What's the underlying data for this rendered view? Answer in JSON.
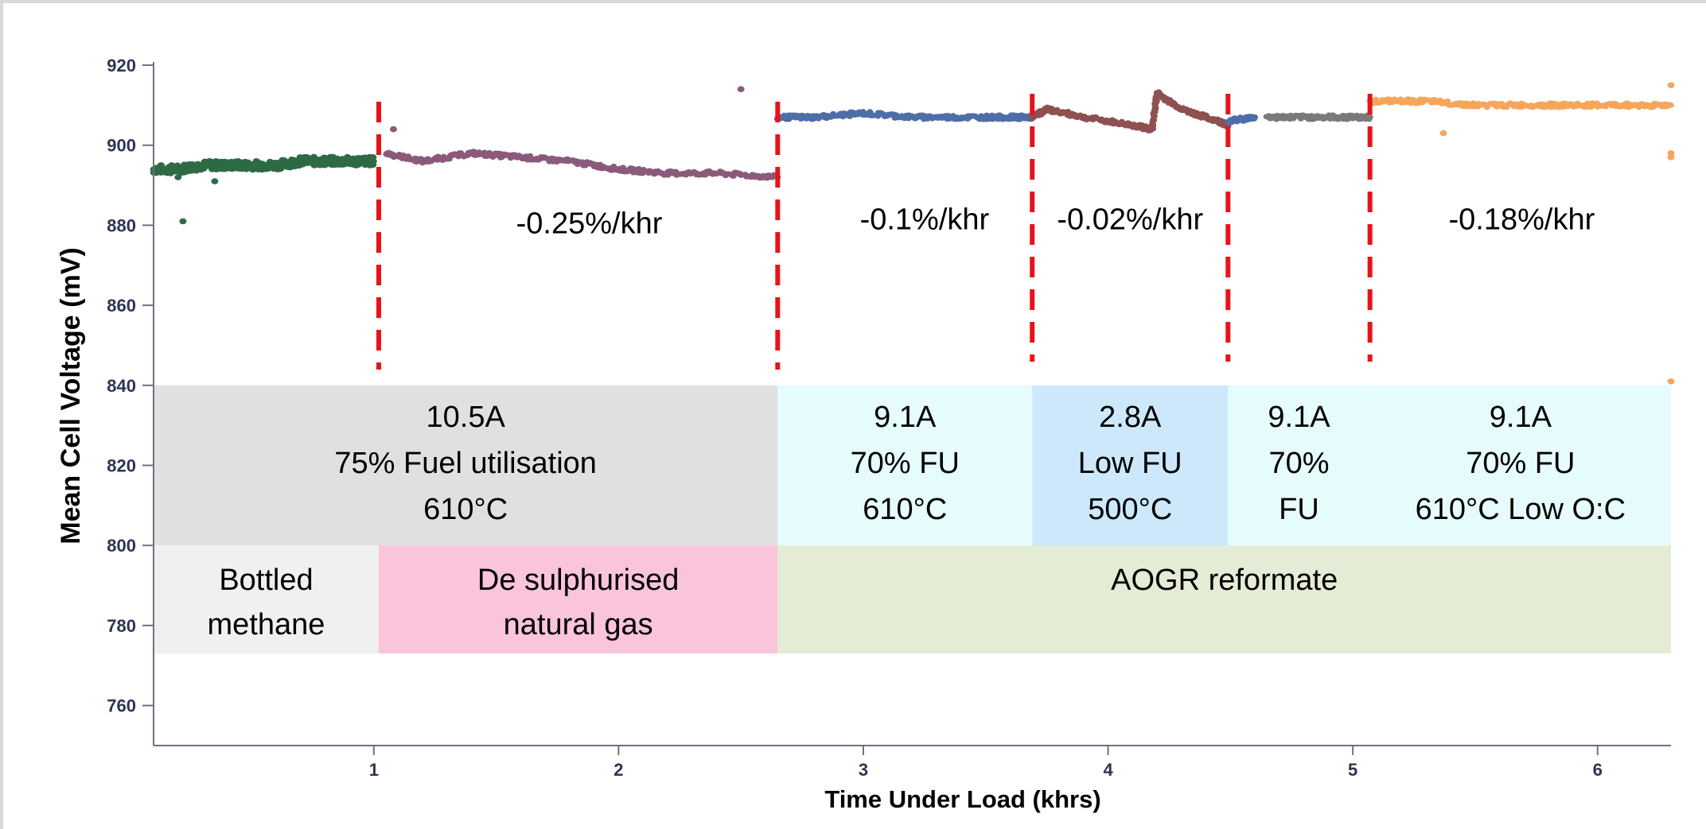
{
  "chart_data": {
    "type": "scatter",
    "title": "",
    "xlabel": "Time Under Load (khrs)",
    "ylabel": "Mean Cell Voltage (mV)",
    "xlim": [
      0.1,
      6.3
    ],
    "ylim": [
      750,
      920
    ],
    "x_ticks": [
      1,
      2,
      3,
      4,
      5,
      6
    ],
    "y_ticks": [
      760,
      780,
      800,
      820,
      840,
      860,
      880,
      900,
      920
    ],
    "grid": false,
    "legend": "none",
    "phase_boundaries_khrs": [
      1.02,
      2.65,
      3.69,
      4.49,
      5.07
    ],
    "series": [
      {
        "color": "#2e6b45",
        "x_range": [
          0.1,
          1.02
        ],
        "points": [
          [
            0.1,
            894
          ],
          [
            0.2,
            894
          ],
          [
            0.3,
            895
          ],
          [
            0.4,
            895
          ],
          [
            0.5,
            895
          ],
          [
            0.6,
            895
          ],
          [
            0.7,
            896
          ],
          [
            0.8,
            896
          ],
          [
            0.9,
            896
          ],
          [
            1.0,
            896
          ]
        ],
        "outliers": [
          [
            0.22,
            881
          ],
          [
            0.2,
            892
          ],
          [
            0.35,
            891
          ]
        ]
      },
      {
        "color": "#8b5a7a",
        "x_range": [
          1.02,
          2.65
        ],
        "points": [
          [
            1.05,
            898
          ],
          [
            1.2,
            896
          ],
          [
            1.4,
            898
          ],
          [
            1.6,
            897
          ],
          [
            1.8,
            896
          ],
          [
            2.0,
            894
          ],
          [
            2.2,
            893
          ],
          [
            2.4,
            893
          ],
          [
            2.65,
            892
          ]
        ],
        "outliers": [
          [
            1.08,
            904
          ],
          [
            2.5,
            914
          ]
        ]
      },
      {
        "color": "#4f6ea8",
        "x_range": [
          2.65,
          3.69
        ],
        "points": [
          [
            2.65,
            907
          ],
          [
            2.8,
            907
          ],
          [
            3.0,
            908
          ],
          [
            3.2,
            907
          ],
          [
            3.4,
            907
          ],
          [
            3.6,
            907
          ],
          [
            3.69,
            907
          ]
        ],
        "outliers": []
      },
      {
        "color": "#8f5050",
        "x_range": [
          3.69,
          4.49
        ],
        "points": [
          [
            3.69,
            907
          ],
          [
            3.75,
            909
          ],
          [
            3.9,
            907
          ],
          [
            4.1,
            905
          ],
          [
            4.18,
            904
          ],
          [
            4.2,
            913
          ],
          [
            4.3,
            909
          ],
          [
            4.45,
            906
          ],
          [
            4.49,
            905
          ]
        ],
        "outliers": []
      },
      {
        "color": "#4f6ea8",
        "x_range": [
          4.49,
          4.65
        ],
        "points": [
          [
            4.49,
            906
          ],
          [
            4.6,
            907
          ]
        ],
        "outliers": []
      },
      {
        "color": "#7a7a78",
        "x_range": [
          4.65,
          5.07
        ],
        "points": [
          [
            4.65,
            907
          ],
          [
            4.8,
            907
          ],
          [
            4.95,
            907
          ],
          [
            5.07,
            907
          ]
        ],
        "outliers": []
      },
      {
        "color": "#f5a65b",
        "x_range": [
          5.07,
          6.3
        ],
        "points": [
          [
            5.07,
            911
          ],
          [
            5.3,
            911
          ],
          [
            5.5,
            910
          ],
          [
            5.7,
            910
          ],
          [
            5.9,
            910
          ],
          [
            6.1,
            910
          ],
          [
            6.3,
            910
          ]
        ],
        "outliers": [
          [
            5.37,
            903
          ],
          [
            6.3,
            915
          ],
          [
            6.3,
            898
          ],
          [
            6.3,
            897
          ],
          [
            6.3,
            841
          ]
        ]
      }
    ],
    "rate_annotations": [
      {
        "text": "-0.25%/khr",
        "x": 1.88,
        "y": 878
      },
      {
        "text": "-0.1%/khr",
        "x": 3.25,
        "y": 879
      },
      {
        "text": "-0.02%/khr",
        "x": 4.09,
        "y": 879
      },
      {
        "text": "-0.18%/khr",
        "x": 5.69,
        "y": 879
      }
    ],
    "condition_bands": [
      {
        "x_from": 0.1,
        "x_to": 2.65,
        "color": "#e0e0e0",
        "lines": [
          "10.5A",
          "75% Fuel utilisation",
          "610°C"
        ]
      },
      {
        "x_from": 2.65,
        "x_to": 3.69,
        "color": "#e6fbfc",
        "lines": [
          "9.1A",
          "70% FU",
          "610°C"
        ]
      },
      {
        "x_from": 3.69,
        "x_to": 4.49,
        "color": "#cde8fa",
        "lines": [
          "2.8A",
          "Low FU",
          "500°C"
        ]
      },
      {
        "x_from": 4.49,
        "x_to": 5.07,
        "color": "#e6fbfc",
        "lines": [
          "9.1A",
          "70%",
          "FU"
        ]
      },
      {
        "x_from": 5.07,
        "x_to": 6.3,
        "color": "#e6fbfc",
        "lines": [
          "9.1A",
          "70% FU",
          "610°C Low O:C"
        ]
      }
    ],
    "fuel_bands": [
      {
        "x_from": 0.1,
        "x_to": 1.02,
        "color": "#f0f0f0",
        "lines": [
          "Bottled",
          "methane"
        ]
      },
      {
        "x_from": 1.02,
        "x_to": 2.65,
        "color": "#fac4dc",
        "lines": [
          "De sulphurised",
          "natural gas"
        ]
      },
      {
        "x_from": 2.65,
        "x_to": 6.3,
        "color": "#e5ecd6",
        "lines": [
          "AOGR reformate"
        ]
      }
    ],
    "boundary_color": "#e8131a"
  }
}
